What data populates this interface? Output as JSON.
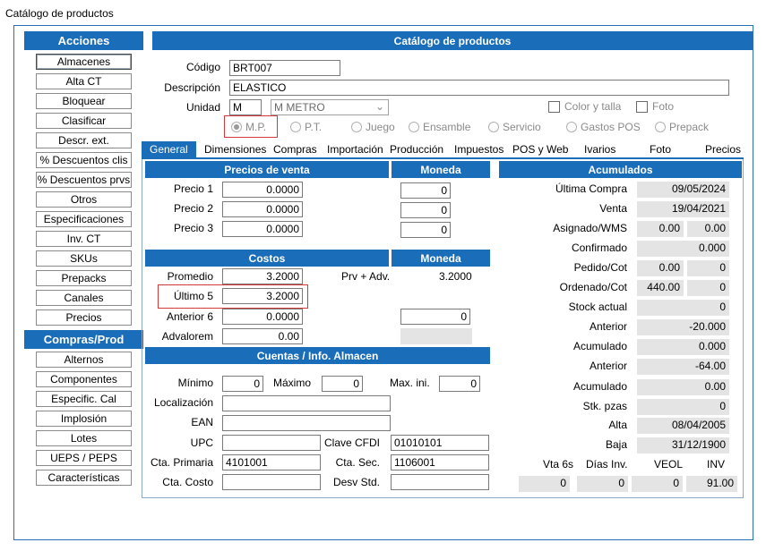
{
  "window_title": "Catálogo de productos",
  "sidebar": {
    "acciones_header": "Acciones",
    "acciones": [
      "Almacenes",
      "Alta CT",
      "Bloquear",
      "Clasificar",
      "Descr. ext.",
      "% Descuentos clis",
      "% Descuentos prvs",
      "Otros",
      "Especificaciones",
      "Inv. CT",
      "SKUs",
      "Prepacks",
      "Canales",
      "Precios"
    ],
    "compras_header": "Compras/Prod",
    "compras": [
      "Alternos",
      "Componentes",
      "Especific. Cal",
      "Implosión",
      "Lotes",
      "UEPS / PEPS",
      "Características"
    ]
  },
  "main": {
    "header": "Catálogo de productos",
    "codigo_label": "Código",
    "codigo_value": "BRT007",
    "descripcion_label": "Descripción",
    "descripcion_value": "ELASTICO",
    "unidad_label": "Unidad",
    "unidad_code": "M",
    "unidad_select": "M  METRO",
    "color_talla": "Color y talla",
    "foto": "Foto",
    "radios": [
      "M.P.",
      "P.T.",
      "Juego",
      "Ensamble",
      "Servicio",
      "Gastos POS",
      "Prepack"
    ],
    "tabs": [
      "General",
      "Dimensiones",
      "Compras",
      "Importación",
      "Producción",
      "Impuestos",
      "POS y Web",
      "Ivarios",
      "Foto",
      "Precios"
    ]
  },
  "precios": {
    "header": "Precios de venta",
    "moneda_header": "Moneda",
    "rows": [
      {
        "label": "Precio 1",
        "value": "0.0000",
        "moneda": "0"
      },
      {
        "label": "Precio 2",
        "value": "0.0000",
        "moneda": "0"
      },
      {
        "label": "Precio 3",
        "value": "0.0000",
        "moneda": "0"
      }
    ]
  },
  "costos": {
    "header": "Costos",
    "moneda_header": "Moneda",
    "promedio_label": "Promedio",
    "promedio_value": "3.2000",
    "prv_adv_label": "Prv + Adv.",
    "prv_adv_value": "3.2000",
    "ultimo_label": "Último 5",
    "ultimo_value": "3.2000",
    "anterior_label": "Anterior 6",
    "anterior_value": "0.0000",
    "anterior_moneda": "0",
    "advalorem_label": "Advalorem",
    "advalorem_value": "0.00"
  },
  "cuentas": {
    "header": "Cuentas / Info. Almacen",
    "minimo_label": "Mínimo",
    "minimo_value": "0",
    "maximo_label": "Máximo",
    "maximo_value": "0",
    "maxini_label": "Max. ini.",
    "maxini_value": "0",
    "localizacion_label": "Localización",
    "ean_label": "EAN",
    "upc_label": "UPC",
    "clave_cfdi_label": "Clave CFDI",
    "clave_cfdi_value": "01010101",
    "cta_primaria_label": "Cta. Primaria",
    "cta_primaria_value": "4101001",
    "cta_sec_label": "Cta. Sec.",
    "cta_sec_value": "1106001",
    "cta_costo_label": "Cta. Costo",
    "desv_std_label": "Desv Std."
  },
  "acumulados": {
    "header": "Acumulados",
    "ultima_compra_label": "Última  Compra",
    "ultima_compra_value": "09/05/2024",
    "venta_label": "Venta",
    "venta_value": "19/04/2021",
    "asignado_label": "Asignado/WMS",
    "asignado_a": "0.00",
    "asignado_b": "0.00",
    "confirmado_label": "Confirmado",
    "confirmado_value": "0.000",
    "pedido_label": "Pedido/Cot",
    "pedido_a": "0.00",
    "pedido_b": "0",
    "ordenado_label": "Ordenado/Cot",
    "ordenado_a": "440.00",
    "ordenado_b": "0",
    "stock_label": "Stock actual",
    "stock_value": "0",
    "anterior1_label": "Anterior",
    "anterior1_value": "-20.000",
    "acumulado1_label": "Acumulado",
    "acumulado1_value": "0.000",
    "anterior2_label": "Anterior",
    "anterior2_value": "-64.00",
    "acumulado2_label": "Acumulado",
    "acumulado2_value": "0.00",
    "stk_pzas_label": "Stk. pzas",
    "stk_pzas_value": "0",
    "alta_label": "Alta",
    "alta_value": "08/04/2005",
    "baja_label": "Baja",
    "baja_value": "31/12/1900",
    "vta6s_label": "Vta 6s",
    "vta6s_value": "0",
    "dias_inv_label": "Días Inv.",
    "dias_inv_value": "0",
    "veol_label": "VEOL",
    "veol_value": "0",
    "inv_label": "INV",
    "inv_value": "91.00"
  }
}
